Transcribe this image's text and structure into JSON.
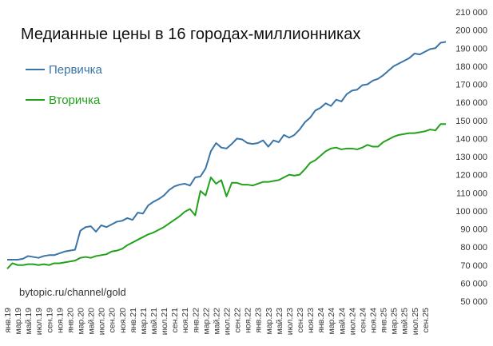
{
  "chart_data": {
    "type": "line",
    "title": "Медианные цены в 16 городах-миллионниках",
    "source": "bytopic.ru/channel/gold",
    "ylim": [
      50000,
      210000
    ],
    "yticks": [
      "50 000",
      "60 000",
      "70 000",
      "80 000",
      "90 000",
      "100 000",
      "110 000",
      "120 000",
      "130 000",
      "140 000",
      "150 000",
      "160 000",
      "170 000",
      "180 000",
      "190 000",
      "200 000",
      "210 000"
    ],
    "yticks_values": [
      50000,
      60000,
      70000,
      80000,
      90000,
      100000,
      110000,
      120000,
      130000,
      140000,
      150000,
      160000,
      170000,
      180000,
      190000,
      200000,
      210000
    ],
    "x_tick_labels": [
      "янв.19",
      "мар.19",
      "май.19",
      "июл.19",
      "сен.19",
      "ноя.19",
      "янв.20",
      "мар.20",
      "май.20",
      "июл.20",
      "сен.20",
      "ноя.20",
      "янв.21",
      "мар.21",
      "май.21",
      "июл.21",
      "сен.21",
      "ноя.21",
      "янв.22",
      "мар.22",
      "май.22",
      "июл.22",
      "сен.22",
      "ноя.22",
      "янв.23",
      "мар.23",
      "май.23",
      "июл.23",
      "сен.23",
      "ноя.23",
      "янв.24",
      "мар.24",
      "май.24",
      "июл.24",
      "сен.24",
      "ноя.24",
      "янв.25",
      "мар.25",
      "май.25",
      "июл.25",
      "сен.25"
    ],
    "x_start": "янв.19",
    "x_step_months": 1,
    "grid": false,
    "legend_position": "top-left",
    "series": [
      {
        "name": "Первичка",
        "color": "#3b75a8",
        "values": [
          73000,
          73000,
          73000,
          73500,
          75000,
          74500,
          74000,
          75000,
          75500,
          75500,
          76500,
          77500,
          78000,
          78500,
          89000,
          91000,
          91500,
          88500,
          92000,
          91000,
          92500,
          94000,
          94500,
          96000,
          95000,
          99000,
          98500,
          103000,
          105000,
          106500,
          108500,
          111500,
          113500,
          114500,
          115000,
          114000,
          118500,
          119000,
          123500,
          133000,
          137500,
          135000,
          134500,
          137000,
          140000,
          139500,
          137500,
          137000,
          137500,
          139000,
          135500,
          139000,
          138000,
          142000,
          140500,
          142000,
          145000,
          149000,
          151500,
          155500,
          157000,
          159500,
          158000,
          161500,
          160500,
          164500,
          166500,
          167000,
          169500,
          170000,
          172000,
          173000,
          175000,
          177500,
          180000,
          181500,
          183000,
          184500,
          187000,
          186500,
          188000,
          189500,
          190000,
          193000,
          193500
        ]
      },
      {
        "name": "Вторичка",
        "color": "#21a21a",
        "values": [
          68000,
          71000,
          70000,
          70000,
          70500,
          70500,
          70000,
          70500,
          70000,
          71000,
          71000,
          71500,
          72000,
          72500,
          74000,
          74500,
          74000,
          75000,
          75500,
          76000,
          77500,
          78000,
          79000,
          81000,
          82500,
          84000,
          85500,
          87000,
          88000,
          89500,
          91000,
          93000,
          95000,
          97000,
          99500,
          101000,
          97500,
          111000,
          108500,
          118500,
          115000,
          117000,
          108000,
          115500,
          115500,
          114500,
          114500,
          114000,
          115000,
          116000,
          116000,
          116500,
          117000,
          118500,
          120000,
          119500,
          120000,
          123000,
          126500,
          128000,
          130500,
          133000,
          134500,
          135000,
          134000,
          134500,
          134500,
          134000,
          135000,
          136500,
          135500,
          135500,
          138000,
          139500,
          141000,
          142000,
          142500,
          143000,
          143000,
          143500,
          144000,
          145000,
          144500,
          148000,
          148000
        ]
      }
    ]
  }
}
